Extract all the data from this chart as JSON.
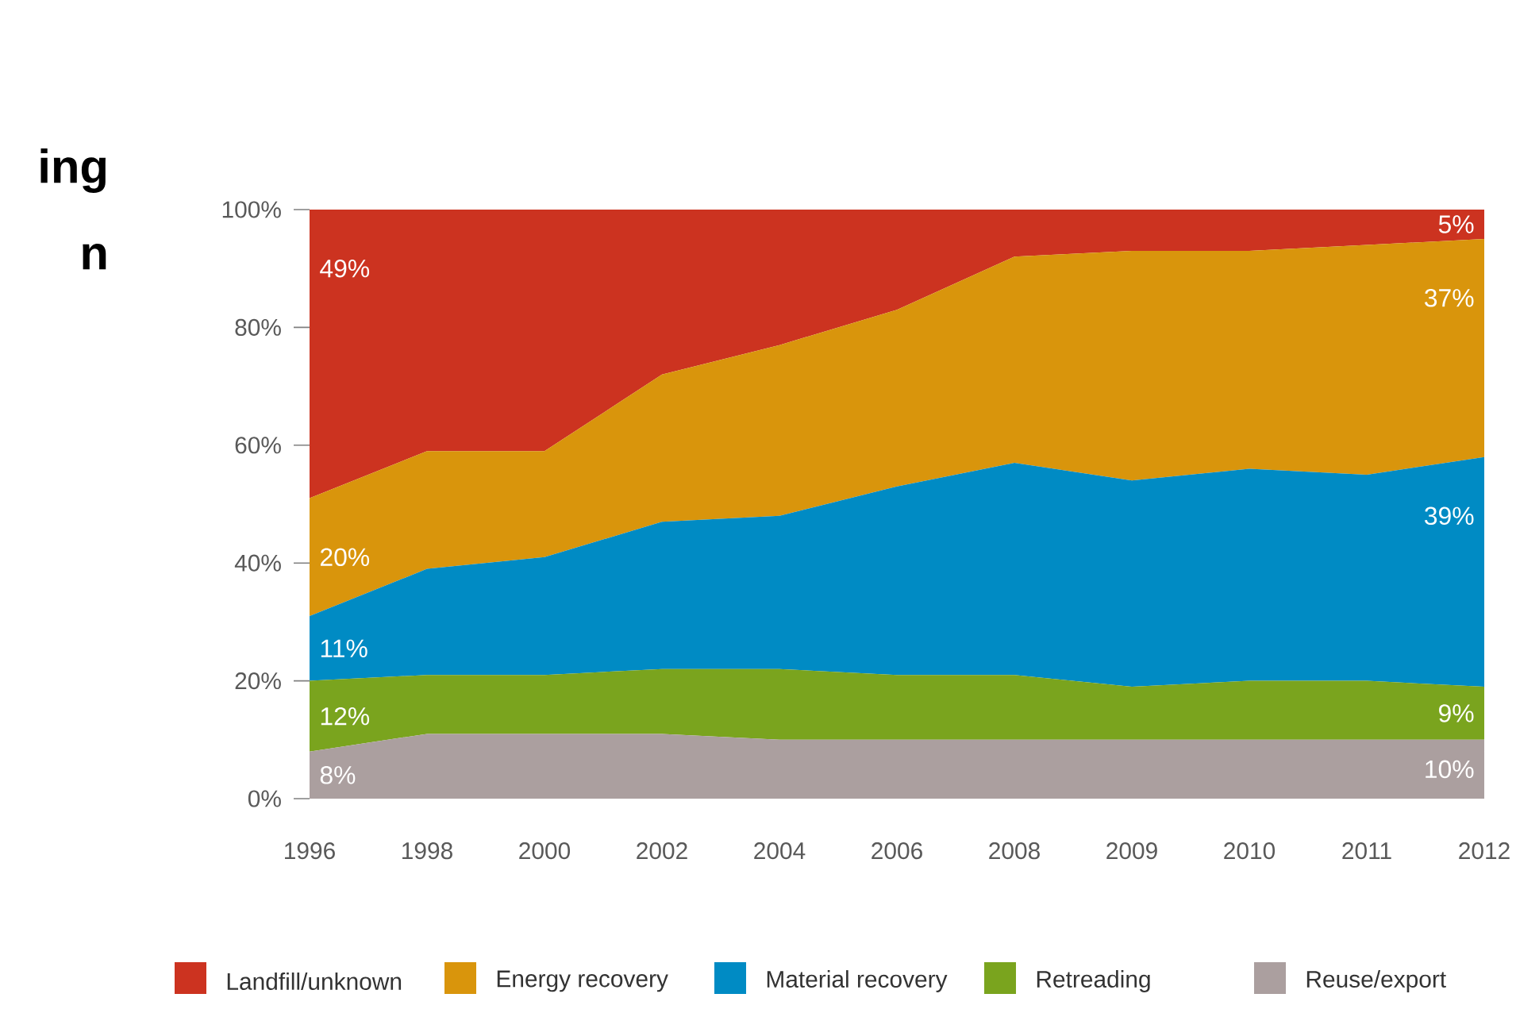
{
  "chart_data": {
    "type": "area",
    "stacked": true,
    "annotations": [
      "ing",
      "n"
    ],
    "categories": [
      "1996",
      "1998",
      "2000",
      "2002",
      "2004",
      "2006",
      "2008",
      "2009",
      "2010",
      "2011",
      "2012"
    ],
    "series": [
      {
        "name": "Reuse/export",
        "color": "#ab9f9f",
        "values": [
          8,
          11,
          11,
          11,
          10,
          10,
          10,
          10,
          10,
          10,
          10
        ],
        "value_labels": [
          "8%",
          null,
          null,
          null,
          null,
          null,
          null,
          null,
          null,
          null,
          "10%"
        ]
      },
      {
        "name": "Retreading",
        "color": "#7aa41e",
        "values": [
          12,
          10,
          10,
          11,
          12,
          11,
          11,
          9,
          10,
          10,
          9
        ],
        "value_labels": [
          "12%",
          null,
          null,
          null,
          null,
          null,
          null,
          null,
          null,
          null,
          "9%"
        ]
      },
      {
        "name": "Material recovery",
        "color": "#008bc4",
        "values": [
          11,
          18,
          20,
          25,
          26,
          32,
          36,
          35,
          36,
          35,
          39
        ],
        "value_labels": [
          "11%",
          null,
          null,
          null,
          null,
          null,
          null,
          null,
          null,
          null,
          "39%"
        ]
      },
      {
        "name": "Energy recovery",
        "color": "#d9950c",
        "values": [
          20,
          20,
          18,
          25,
          29,
          30,
          35,
          39,
          37,
          39,
          37
        ],
        "value_labels": [
          "20%",
          null,
          null,
          null,
          null,
          null,
          null,
          null,
          null,
          null,
          "37%"
        ]
      },
      {
        "name": "Landfill/unknown",
        "color": "#cc3320",
        "values": [
          49,
          41,
          41,
          28,
          23,
          17,
          8,
          7,
          7,
          6,
          5
        ],
        "value_labels": [
          "49%",
          null,
          null,
          null,
          null,
          null,
          null,
          null,
          null,
          null,
          "5%"
        ]
      }
    ],
    "ylim": [
      0,
      100
    ],
    "yticks": [
      {
        "value": 0,
        "label": "0%"
      },
      {
        "value": 20,
        "label": "20%"
      },
      {
        "value": 40,
        "label": "40%"
      },
      {
        "value": 60,
        "label": "60%"
      },
      {
        "value": 80,
        "label": "80%"
      },
      {
        "value": 100,
        "label": "100%"
      }
    ],
    "grid": false,
    "legend": "bottom"
  }
}
